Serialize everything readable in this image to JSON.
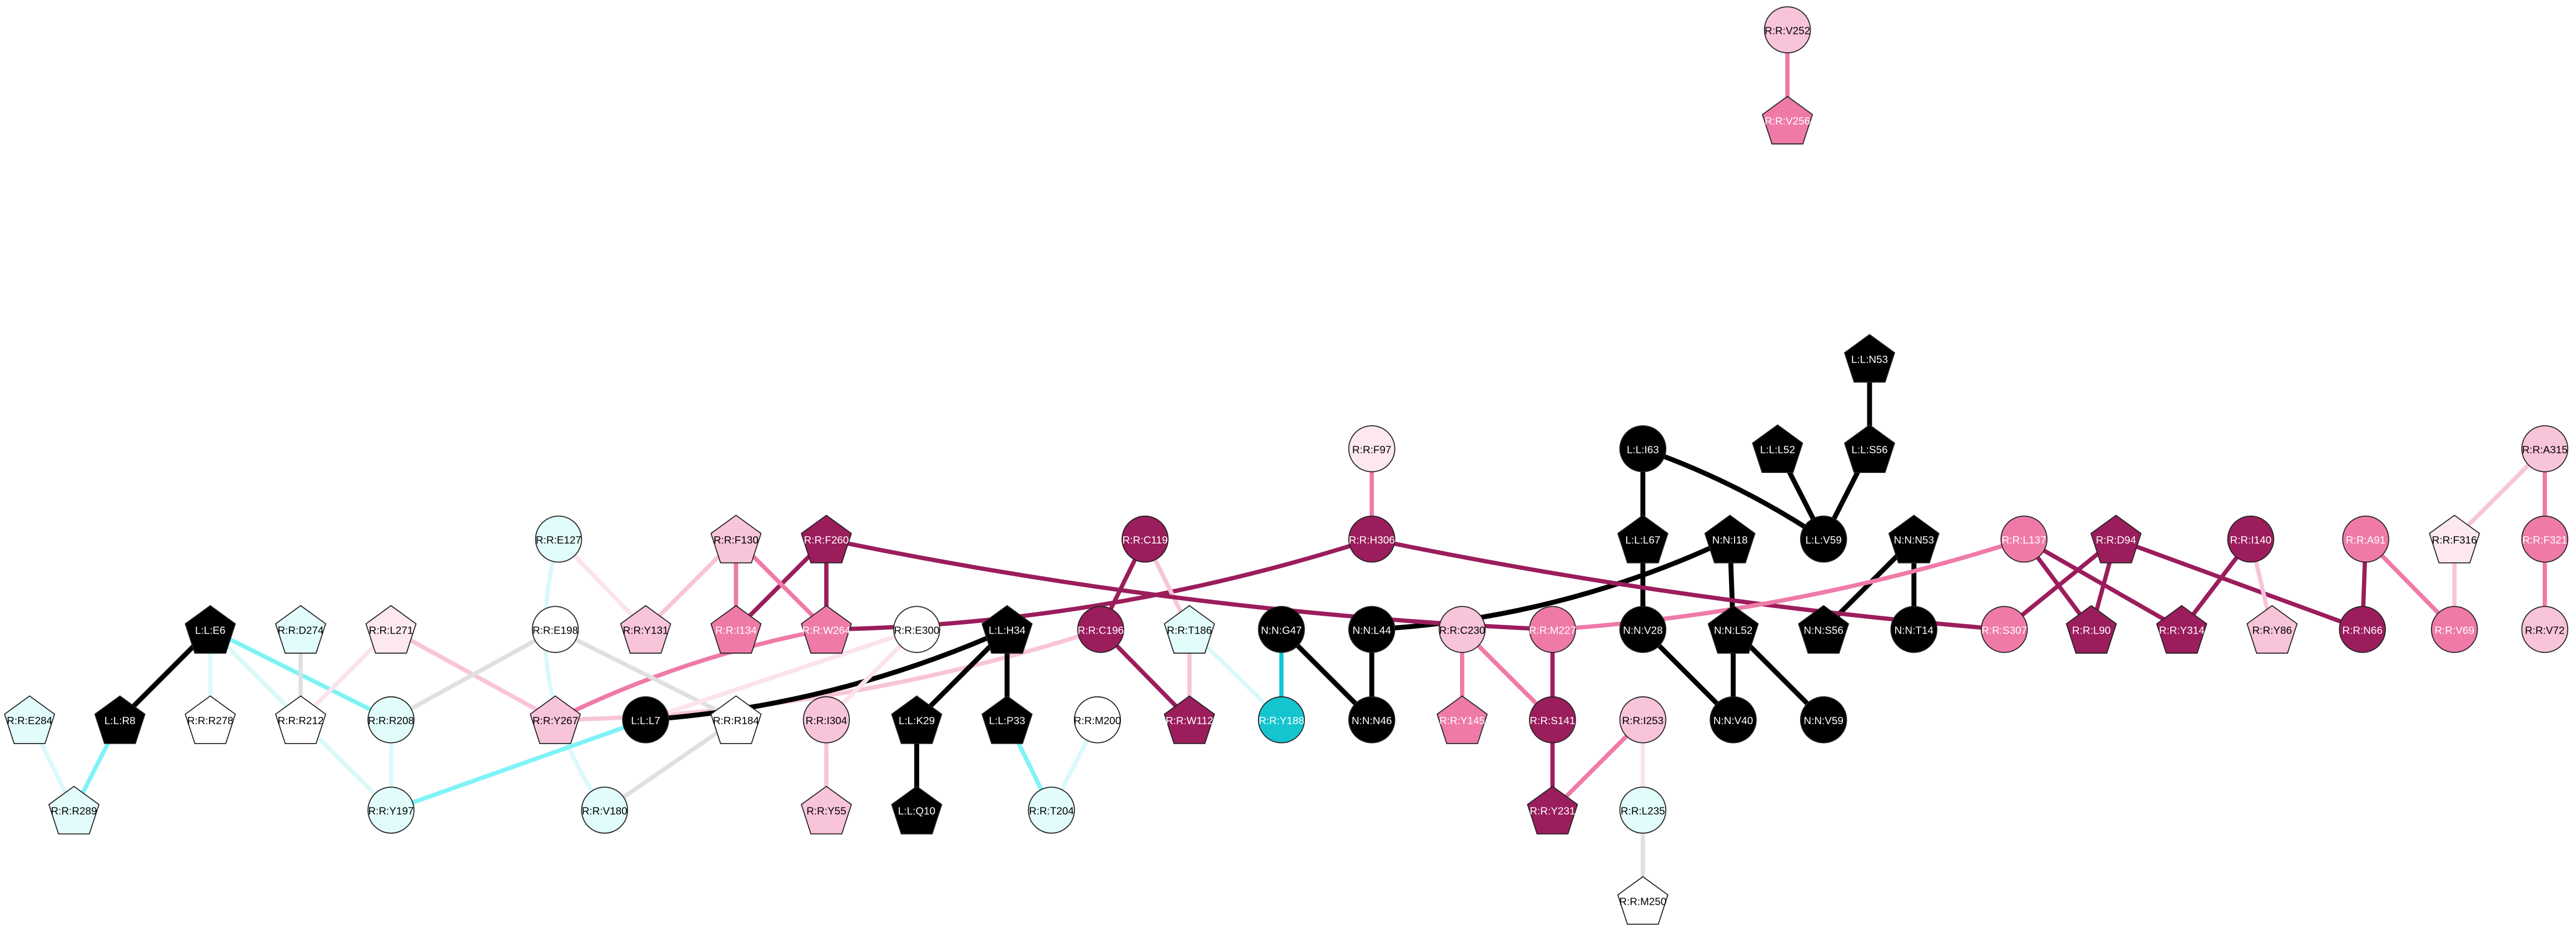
{
  "nodes": [
    {
      "label": "R:R:V252"
    },
    {
      "label": "R:R:V256"
    },
    {
      "label": "L:L:N53"
    },
    {
      "label": "L:L:I63"
    },
    {
      "label": "L:L:L52"
    },
    {
      "label": "L:L:S56"
    },
    {
      "label": "R:R:F97"
    },
    {
      "label": "R:R:A315"
    },
    {
      "label": "L:L:L67"
    },
    {
      "label": "N:N:I18"
    },
    {
      "label": "L:L:V59"
    },
    {
      "label": "N:N:N53"
    },
    {
      "label": "R:R:C119"
    },
    {
      "label": "R:R:H306"
    },
    {
      "label": "R:R:F130"
    },
    {
      "label": "R:R:F260"
    },
    {
      "label": "R:R:E127"
    },
    {
      "label": "R:R:L137"
    },
    {
      "label": "R:R:D94"
    },
    {
      "label": "R:R:I140"
    },
    {
      "label": "R:R:A91"
    },
    {
      "label": "R:R:F316"
    },
    {
      "label": "R:R:F321"
    },
    {
      "label": "R:R:Y131"
    },
    {
      "label": "R:R:I134"
    },
    {
      "label": "R:R:W264"
    },
    {
      "label": "R:R:E198"
    },
    {
      "label": "R:R:C196"
    },
    {
      "label": "R:R:T186"
    },
    {
      "label": "N:N:G47"
    },
    {
      "label": "N:N:L44"
    },
    {
      "label": "R:R:C230"
    },
    {
      "label": "R:R:M227"
    },
    {
      "label": "N:N:V28"
    },
    {
      "label": "N:N:L52"
    },
    {
      "label": "N:N:S56"
    },
    {
      "label": "N:N:T14"
    },
    {
      "label": "R:R:S307"
    },
    {
      "label": "R:R:L90"
    },
    {
      "label": "R:R:Y314"
    },
    {
      "label": "R:R:Y86"
    },
    {
      "label": "R:R:N66"
    },
    {
      "label": "R:R:V69"
    },
    {
      "label": "R:R:V72"
    },
    {
      "label": "L:L:E6"
    },
    {
      "label": "R:R:D274"
    },
    {
      "label": "R:R:L271"
    },
    {
      "label": "R:R:E300"
    },
    {
      "label": "L:L:H34"
    },
    {
      "label": "L:L:R8"
    },
    {
      "label": "R:R:R278"
    },
    {
      "label": "R:R:R212"
    },
    {
      "label": "R:R:R208"
    },
    {
      "label": "R:R:Y267"
    },
    {
      "label": "L:L:L7"
    },
    {
      "label": "R:R:R184"
    },
    {
      "label": "R:R:I304"
    },
    {
      "label": "L:L:K29"
    },
    {
      "label": "L:L:P33"
    },
    {
      "label": "R:R:M200"
    },
    {
      "label": "R:R:W112"
    },
    {
      "label": "R:R:Y188"
    },
    {
      "label": "N:N:N46"
    },
    {
      "label": "R:R:Y145"
    },
    {
      "label": "R:R:S141"
    },
    {
      "label": "R:R:I253"
    },
    {
      "label": "N:N:V40"
    },
    {
      "label": "N:N:V59"
    },
    {
      "label": "R:R:E284"
    },
    {
      "label": "R:R:R289"
    },
    {
      "label": "R:R:Y197"
    },
    {
      "label": "R:R:V180"
    },
    {
      "label": "R:R:Y55"
    },
    {
      "label": "L:L:Q10"
    },
    {
      "label": "R:R:T204"
    },
    {
      "label": "R:R:Y231"
    },
    {
      "label": "R:R:L235"
    },
    {
      "label": "R:R:M250"
    }
  ]
}
